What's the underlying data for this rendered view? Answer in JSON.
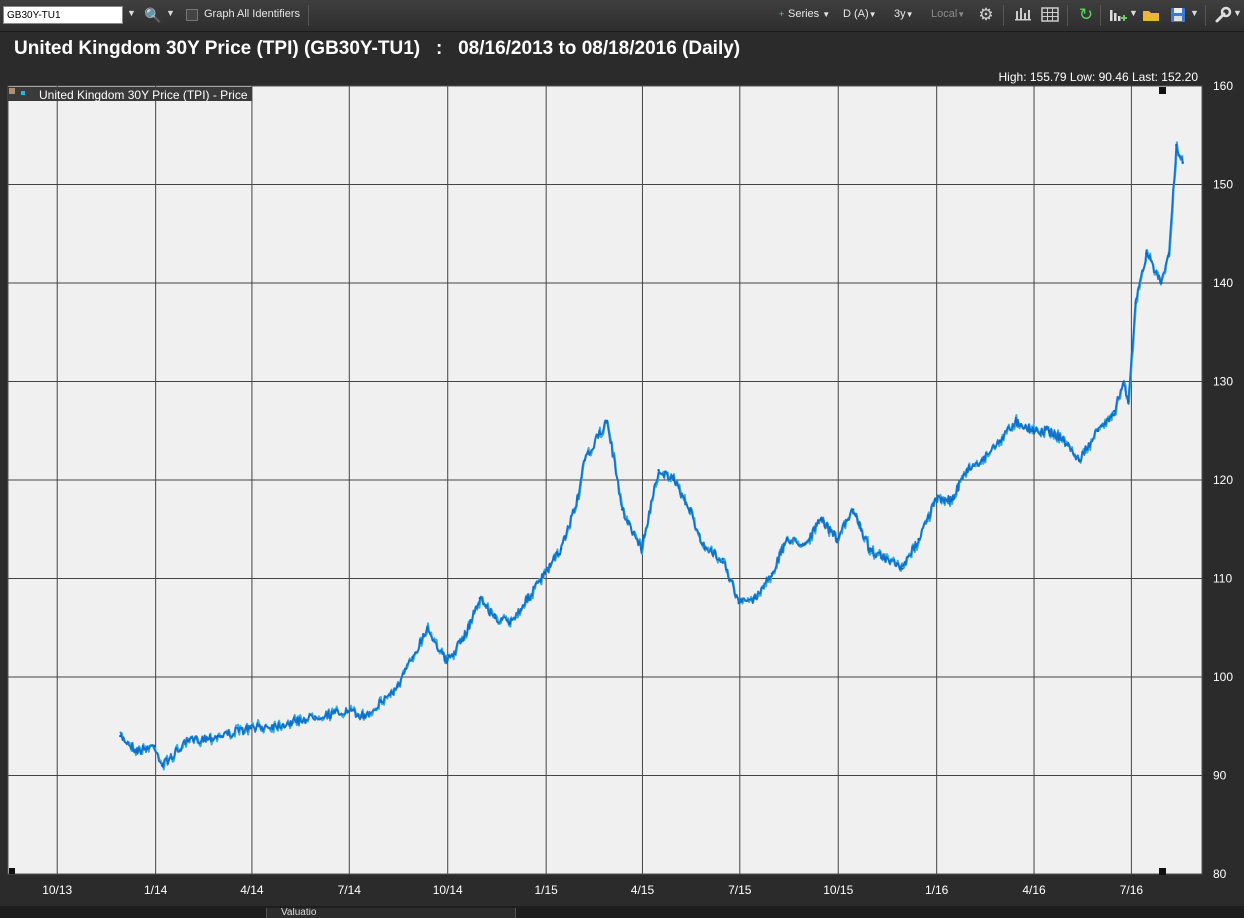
{
  "toolbar": {
    "identifier_value": "GB30Y-TU1",
    "graph_all_label": "Graph All Identifiers",
    "series_label": "Series",
    "frequency_label": "D (A)",
    "range_label": "3y",
    "local_label": "Local"
  },
  "header": {
    "title": "United Kingdom 30Y Price (TPI) (GB30Y-TU1)   :   08/16/2013 to 08/18/2016 (Daily)",
    "stats": "High: 155.79 Low: 90.46 Last: 152.20"
  },
  "bottom": {
    "tab_label": "Valuatio"
  },
  "colors": {
    "line_dark": "#0a66c2",
    "line_light": "#35b0e6",
    "plot_bg": "#f0f0f0",
    "grid": "#444444"
  },
  "chart_data": {
    "type": "line",
    "title": "United Kingdom 30Y Price (TPI) (GB30Y-TU1)",
    "x_tick_labels": [
      "10/13",
      "1/14",
      "4/14",
      "7/14",
      "10/14",
      "1/15",
      "4/15",
      "7/15",
      "10/15",
      "1/16",
      "4/16",
      "7/16"
    ],
    "y_ticks": [
      80,
      90,
      100,
      110,
      120,
      130,
      140,
      150,
      160
    ],
    "ylim": [
      80,
      160
    ],
    "xlim": [
      "2013-08-16",
      "2016-09-05"
    ],
    "grid": true,
    "legend_position": "top-left",
    "series": [
      {
        "name": "United Kingdom 30Y Price (TPI) - Price",
        "x": [
          "2013-11-29",
          "2013-12-15",
          "2013-12-31",
          "2014-01-07",
          "2014-01-31",
          "2014-02-28",
          "2014-03-31",
          "2014-04-30",
          "2014-05-30",
          "2014-06-30",
          "2014-07-15",
          "2014-07-31",
          "2014-08-15",
          "2014-08-29",
          "2014-09-12",
          "2014-09-30",
          "2014-10-16",
          "2014-10-31",
          "2014-11-14",
          "2014-11-28",
          "2014-12-15",
          "2014-12-31",
          "2015-01-15",
          "2015-01-30",
          "2015-02-06",
          "2015-02-27",
          "2015-03-13",
          "2015-03-31",
          "2015-04-16",
          "2015-04-30",
          "2015-05-15",
          "2015-05-29",
          "2015-06-15",
          "2015-06-30",
          "2015-07-15",
          "2015-07-31",
          "2015-08-14",
          "2015-08-31",
          "2015-09-15",
          "2015-09-30",
          "2015-10-15",
          "2015-10-30",
          "2015-11-13",
          "2015-11-30",
          "2015-12-15",
          "2015-12-31",
          "2016-01-15",
          "2016-01-29",
          "2016-02-12",
          "2016-02-29",
          "2016-03-15",
          "2016-03-31",
          "2016-04-15",
          "2016-04-29",
          "2016-05-13",
          "2016-05-31",
          "2016-06-15",
          "2016-06-24",
          "2016-06-28",
          "2016-07-05",
          "2016-07-15",
          "2016-07-29",
          "2016-08-05",
          "2016-08-12",
          "2016-08-18"
        ],
        "y": [
          94.0,
          92.5,
          93.0,
          91.0,
          93.5,
          94.0,
          94.8,
          95.2,
          96.0,
          96.5,
          96.0,
          97.5,
          99.0,
          102.0,
          105.0,
          101.5,
          104.0,
          108.0,
          106.0,
          105.5,
          108.0,
          110.5,
          113.0,
          118.0,
          122.0,
          126.0,
          117.0,
          113.0,
          121.0,
          120.0,
          117.0,
          113.0,
          112.0,
          107.5,
          108.0,
          110.5,
          114.0,
          113.5,
          116.0,
          114.0,
          117.0,
          113.0,
          112.0,
          111.0,
          114.0,
          118.0,
          118.0,
          121.0,
          122.0,
          124.0,
          126.0,
          125.0,
          125.0,
          124.0,
          122.0,
          125.0,
          127.0,
          130.0,
          128.0,
          138.0,
          143.0,
          140.0,
          143.0,
          154.0,
          152.2
        ]
      }
    ]
  }
}
